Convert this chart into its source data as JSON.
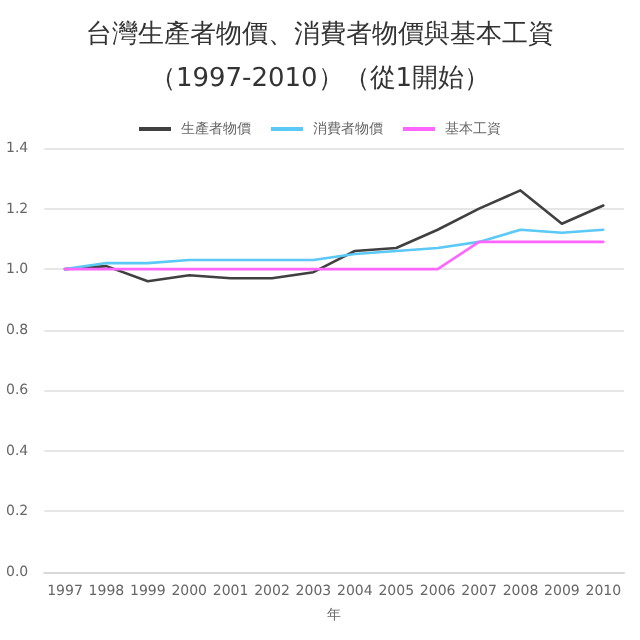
{
  "chart_data": {
    "type": "line",
    "title": "台灣生產者物價、消費者物價與基本工資",
    "subtitle": "（1997-2010）（從1開始）",
    "xlabel": "年",
    "categories": [
      "1997",
      "1998",
      "1999",
      "2000",
      "2001",
      "2002",
      "2003",
      "2004",
      "2005",
      "2006",
      "2007",
      "2008",
      "2009",
      "2010"
    ],
    "series": [
      {
        "name": "生產者物價",
        "color": "#404040",
        "values": [
          1.0,
          1.01,
          0.96,
          0.98,
          0.97,
          0.97,
          0.99,
          1.06,
          1.07,
          1.13,
          1.2,
          1.26,
          1.15,
          1.21
        ]
      },
      {
        "name": "消費者物價",
        "color": "#5bc8f5",
        "values": [
          1.0,
          1.02,
          1.02,
          1.03,
          1.03,
          1.03,
          1.03,
          1.05,
          1.06,
          1.07,
          1.09,
          1.13,
          1.12,
          1.13
        ]
      },
      {
        "name": "基本工資",
        "color": "#ff66ff",
        "values": [
          1.0,
          1.0,
          1.0,
          1.0,
          1.0,
          1.0,
          1.0,
          1.0,
          1.0,
          1.0,
          1.09,
          1.09,
          1.09,
          1.09
        ]
      }
    ],
    "ylim": [
      0,
      1.4
    ],
    "yticks": [
      {
        "value": 0,
        "label": "0.0"
      },
      {
        "value": 0.2,
        "label": "0.2"
      },
      {
        "value": 0.4,
        "label": "0.4"
      },
      {
        "value": 0.6,
        "label": "0.6"
      },
      {
        "value": 0.8,
        "label": "0.8"
      },
      {
        "value": 1,
        "label": "1.0"
      },
      {
        "value": 1.2,
        "label": "1.2"
      },
      {
        "value": 1.4,
        "label": "1.4"
      }
    ],
    "grid": "y",
    "legend": "top",
    "marker": "none",
    "line_style": "solid"
  }
}
